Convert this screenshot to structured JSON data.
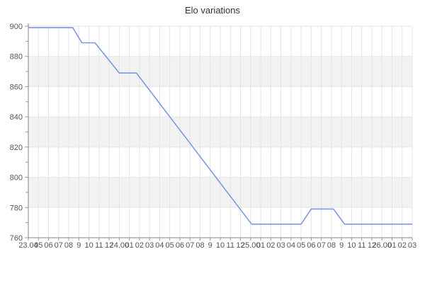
{
  "title": "Elo variations",
  "colors": {
    "line": "#7a9add",
    "band": "#f2f2f2",
    "grid": "#e5e5e5",
    "axis": "#848484",
    "tick": "#999999",
    "label_text": "#555555",
    "title_text": "#333333",
    "background": "#ffffff"
  },
  "chart_data": {
    "type": "line",
    "title": "Elo variations",
    "xlabel": "",
    "ylabel": "",
    "x_tick_labels": [
      "23.04",
      "05",
      "06",
      "07",
      "08",
      "9",
      "10",
      "11",
      "12",
      "24.00",
      "01",
      "02",
      "03",
      "04",
      "05",
      "06",
      "07",
      "08",
      "9",
      "10",
      "11",
      "12",
      "25.00",
      "01",
      "02",
      "03",
      "04",
      "05",
      "06",
      "07",
      "08",
      "9",
      "10",
      "11",
      "12",
      "26.00",
      "01",
      "02",
      "03"
    ],
    "y_ticks": [
      760,
      780,
      800,
      820,
      840,
      860,
      880,
      900
    ],
    "ylim": [
      760,
      900
    ],
    "y_minor_step": 10,
    "grid": true,
    "alternate_band_intervals": [
      [
        860,
        880
      ],
      [
        820,
        840
      ],
      [
        780,
        800
      ]
    ],
    "legend": "none",
    "series": [
      {
        "name": "Elo",
        "color": "#7a9add",
        "vertices_tick_elo": [
          [
            0,
            899
          ],
          [
            4.4,
            899
          ],
          [
            5.3,
            889
          ],
          [
            6.6,
            889
          ],
          [
            9.0,
            869
          ],
          [
            10.7,
            869
          ],
          [
            22.1,
            769
          ],
          [
            27.0,
            769
          ],
          [
            28.0,
            779
          ],
          [
            30.2,
            779
          ],
          [
            31.3,
            769
          ],
          [
            38.0,
            769
          ]
        ]
      }
    ]
  }
}
